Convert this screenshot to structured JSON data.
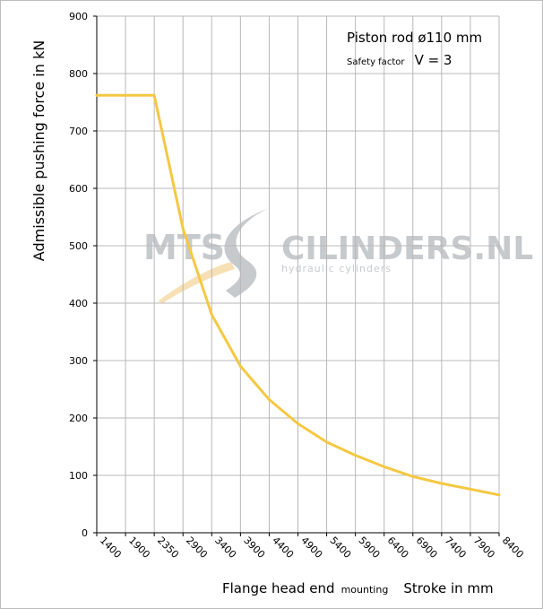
{
  "chart_data": {
    "type": "line",
    "x": [
      1400,
      1900,
      2350,
      2900,
      3400,
      3900,
      4400,
      4900,
      5400,
      5900,
      6400,
      6900,
      7400,
      7900,
      8400
    ],
    "x_tick_labels": [
      "1400",
      "1900",
      "2350",
      "2900",
      "3400",
      "3900",
      "4400",
      "4900",
      "5400",
      "5900",
      "6400",
      "6900",
      "7400",
      "7900",
      "8400"
    ],
    "series": [
      {
        "values": [
          762,
          762,
          762,
          530,
          380,
          290,
          232,
          190,
          158,
          135,
          115,
          98,
          86,
          76,
          66
        ]
      }
    ],
    "ylabel": "Admissible  pushing  force in kN",
    "xlabel_part1": "Flange head end",
    "xlabel_part2": "mounting",
    "xlabel_part3": "Stroke in mm",
    "ylim": [
      0,
      900
    ],
    "y_ticks": [
      0,
      100,
      200,
      300,
      400,
      500,
      600,
      700,
      800,
      900
    ],
    "grid": true,
    "annotations": {
      "line1": "Piston rod ø110 mm",
      "line2_small": "Safety factor",
      "line2_big": "V = 3"
    },
    "watermark": {
      "left": "MTS",
      "right": "CILINDERS.NL",
      "sub": "hydraulic  cylinders"
    },
    "colors": {
      "line": "#f5c842",
      "grid": "#b8b8b8",
      "axis": "#000000"
    }
  }
}
